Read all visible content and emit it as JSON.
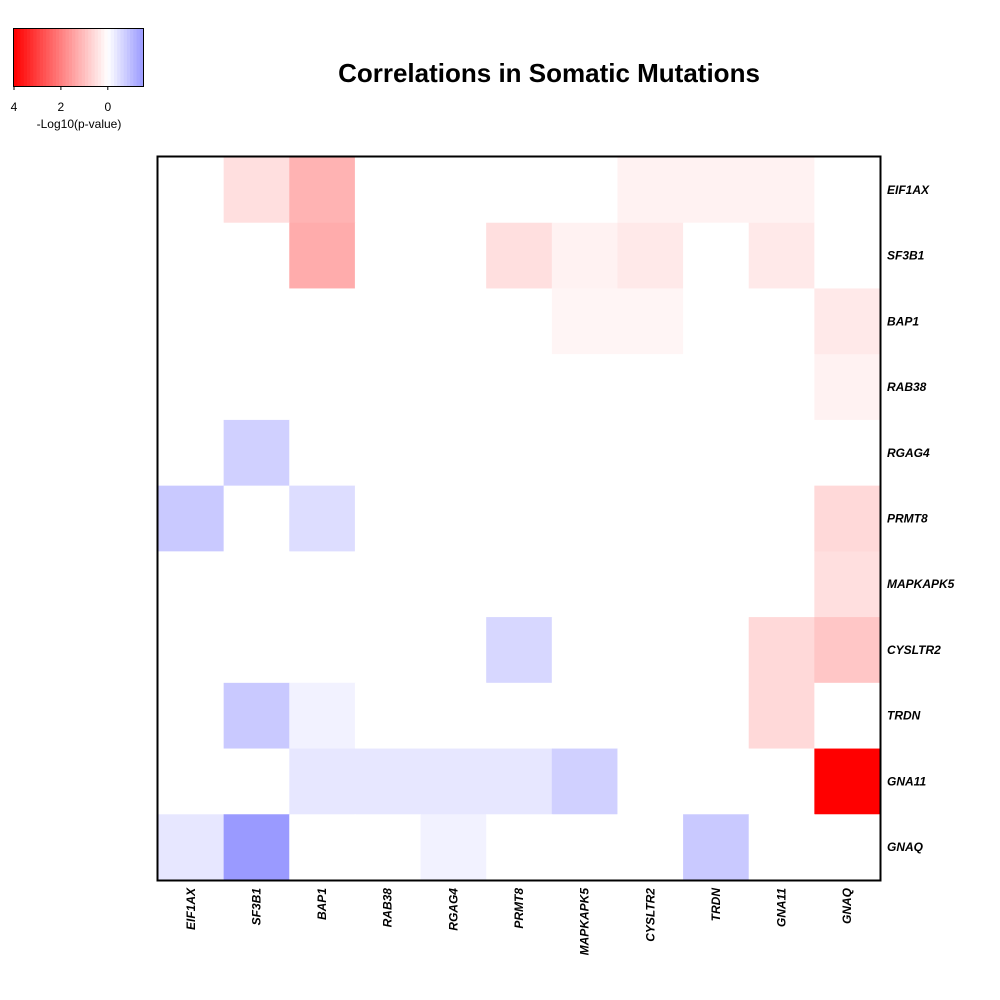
{
  "chart_data": {
    "type": "heatmap",
    "title": "Correlations in Somatic Mutations",
    "x_labels": [
      "EIF1AX",
      "SF3B1",
      "BAP1",
      "RAB38",
      "RGAG4",
      "PRMT8",
      "MAPKAPK5",
      "CYSLTR2",
      "TRDN",
      "GNA11",
      "GNAQ"
    ],
    "y_labels": [
      "EIF1AX",
      "SF3B1",
      "BAP1",
      "RAB38",
      "RGAG4",
      "PRMT8",
      "MAPKAPK5",
      "CYSLTR2",
      "TRDN",
      "GNA11",
      "GNAQ"
    ],
    "values": [
      [
        0,
        0.5,
        1.2,
        0,
        0,
        0,
        0,
        0.2,
        0.2,
        0.2,
        0
      ],
      [
        0,
        0,
        1.3,
        0,
        0,
        0.5,
        0.2,
        0.35,
        0,
        0.35,
        0
      ],
      [
        0,
        0,
        0,
        0,
        0,
        0,
        0.15,
        0.15,
        0,
        0,
        0.35
      ],
      [
        0,
        0,
        0,
        0,
        0,
        0,
        0,
        0,
        0,
        0,
        0.2
      ],
      [
        0,
        -0.7,
        0,
        0,
        0,
        0,
        0,
        0,
        0,
        0,
        0
      ],
      [
        -0.8,
        0,
        -0.5,
        0,
        0,
        0,
        0,
        0,
        0,
        0,
        0.6
      ],
      [
        0,
        0,
        0,
        0,
        0,
        0,
        0,
        0,
        0,
        0,
        0.5
      ],
      [
        0,
        0,
        0,
        0,
        0,
        -0.6,
        0,
        0,
        0,
        0.6,
        0.9
      ],
      [
        0,
        -0.8,
        -0.2,
        0,
        0,
        0,
        0,
        0,
        0,
        0.6,
        0
      ],
      [
        0,
        0,
        -0.35,
        -0.35,
        -0.35,
        -0.35,
        -0.7,
        0,
        0,
        0,
        4
      ],
      [
        -0.35,
        -1.5,
        0,
        0,
        -0.2,
        0,
        0,
        0,
        -0.8,
        0,
        0
      ]
    ],
    "color_scale": {
      "label": "-Log10(p-value)",
      "min": -1.5,
      "max": 4,
      "ticks": [
        4,
        2,
        0
      ],
      "low_color": "#9a9aff",
      "mid_color": "#ffffff",
      "high_color": "#ff0000"
    }
  }
}
